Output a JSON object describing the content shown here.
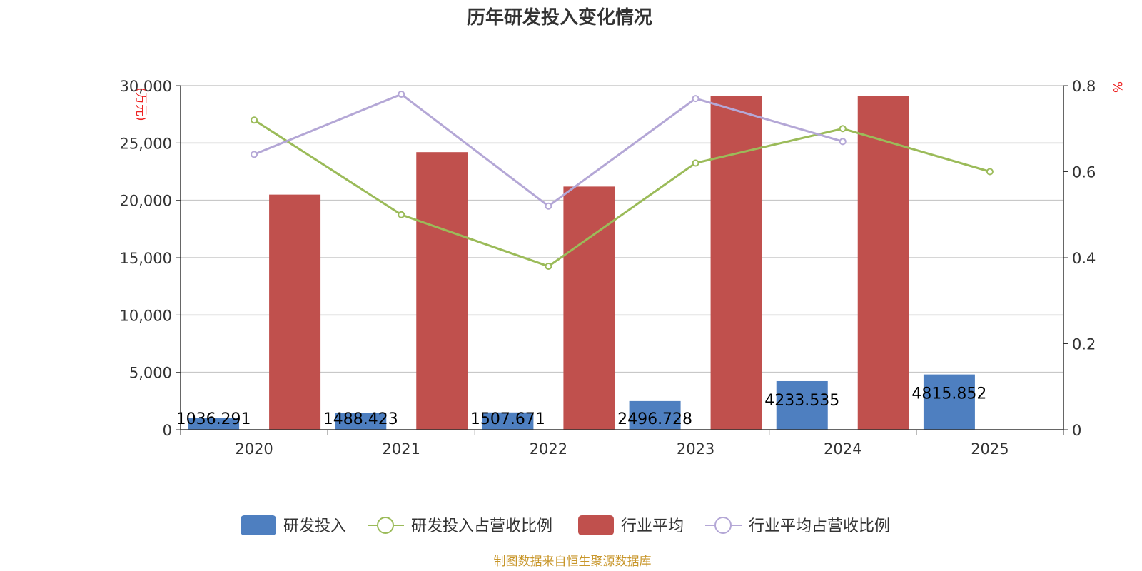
{
  "chart_data": {
    "type": "bar",
    "title": "历年研发投入变化情况",
    "categories": [
      "2020",
      "2021",
      "2022",
      "2023",
      "2024",
      "2025"
    ],
    "y_left": {
      "unit": "(万元)",
      "ylim": [
        0,
        30000
      ],
      "ticks": [
        "0",
        "5,000",
        "10,000",
        "15,000",
        "20,000",
        "25,000",
        "30,000"
      ]
    },
    "y_right": {
      "unit": "%",
      "ylim": [
        0,
        0.8
      ],
      "ticks": [
        "0",
        "0.2",
        "0.4",
        "0.6",
        "0.8"
      ]
    },
    "series": [
      {
        "name": "研发投入",
        "kind": "bar",
        "axis": "left",
        "color": "#4e7fc0",
        "values": [
          1036.291,
          1488.423,
          1507.671,
          2496.728,
          4233.535,
          4815.852
        ],
        "labels": [
          "1036.291",
          "1488.423",
          "1507.671",
          "2496.728",
          "4233.535",
          "4815.852"
        ]
      },
      {
        "name": "研发投入占营收比例",
        "kind": "line",
        "axis": "right",
        "color": "#9bbb59",
        "values": [
          0.72,
          0.5,
          0.38,
          0.62,
          0.7,
          0.6
        ]
      },
      {
        "name": "行业平均",
        "kind": "bar",
        "axis": "left",
        "color": "#c0504d",
        "values": [
          20500,
          24200,
          21200,
          29100,
          29100,
          null
        ]
      },
      {
        "name": "行业平均占营收比例",
        "kind": "line",
        "axis": "right",
        "color": "#b4a7d6",
        "values": [
          0.64,
          0.78,
          0.52,
          0.77,
          0.67,
          null
        ]
      }
    ],
    "grid": true,
    "legend_position": "bottom"
  },
  "footer": {
    "source": "制图数据来自恒生聚源数据库"
  }
}
